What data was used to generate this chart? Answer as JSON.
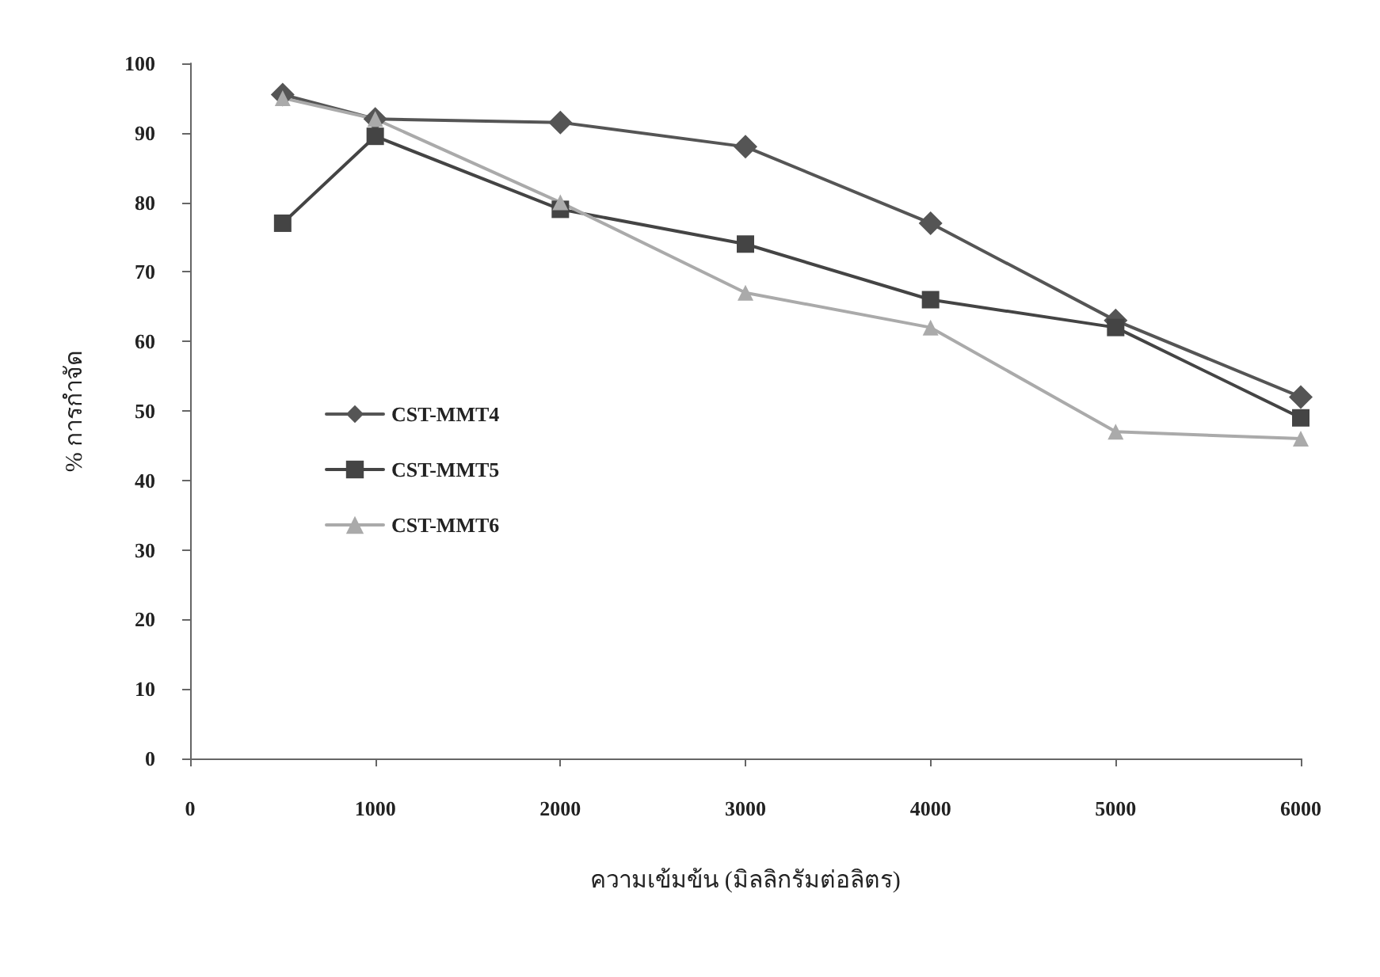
{
  "chart_data": {
    "type": "line",
    "xlabel": "ความเข้มข้น (มิลลิกรัมต่อลิตร)",
    "ylabel": "% การกำจัด",
    "x": [
      500,
      1000,
      2000,
      3000,
      4000,
      5000,
      6000
    ],
    "xlim": [
      0,
      6000
    ],
    "xticks": [
      0,
      1000,
      2000,
      3000,
      4000,
      5000,
      6000
    ],
    "ylim": [
      0,
      100
    ],
    "yticks": [
      0,
      10,
      20,
      30,
      40,
      50,
      60,
      70,
      80,
      90,
      100
    ],
    "grid": false,
    "legend": "left",
    "series": [
      {
        "name": "CST-MMT4",
        "color": "#555555",
        "marker": "diamond",
        "values": [
          95.5,
          92,
          91.5,
          88,
          77,
          63,
          52
        ]
      },
      {
        "name": "CST-MMT5",
        "color": "#444444",
        "marker": "square",
        "values": [
          77,
          89.5,
          79,
          74,
          66,
          62,
          49
        ]
      },
      {
        "name": "CST-MMT6",
        "color": "#aaaaaa",
        "marker": "triangle",
        "values": [
          95,
          92,
          80,
          67,
          62,
          47,
          46
        ]
      }
    ]
  }
}
